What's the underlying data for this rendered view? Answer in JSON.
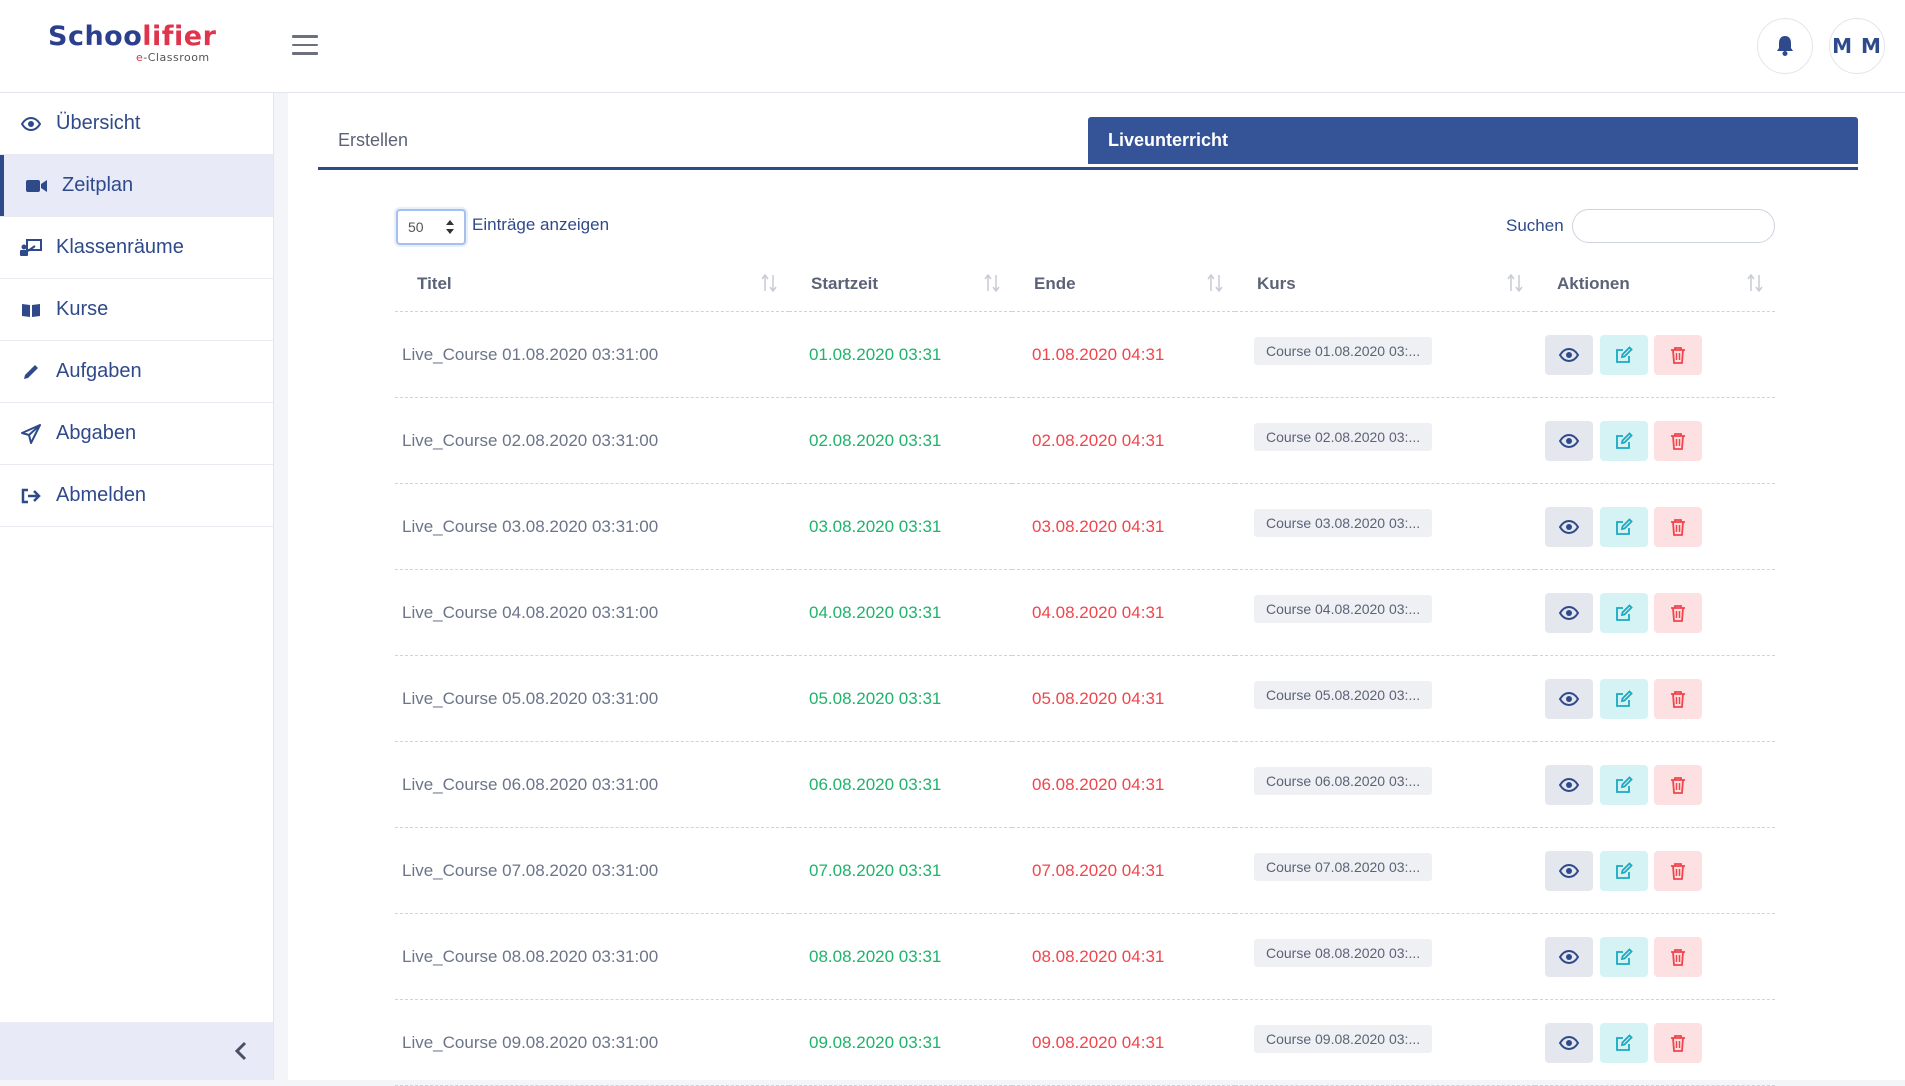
{
  "brand": {
    "logo_part1": "Schoo",
    "logo_part2": "lifier",
    "logo_sub_e": "e",
    "logo_sub_rest": "-Classroom"
  },
  "header": {
    "avatar_initials": "M M"
  },
  "sidebar": {
    "items": [
      {
        "label": "Übersicht",
        "icon": "eye-icon"
      },
      {
        "label": "Zeitplan",
        "icon": "video-camera-icon"
      },
      {
        "label": "Klassenräume",
        "icon": "classroom-icon"
      },
      {
        "label": "Kurse",
        "icon": "book-icon"
      },
      {
        "label": "Aufgaben",
        "icon": "pencil-icon"
      },
      {
        "label": "Abgaben",
        "icon": "paper-plane-icon"
      },
      {
        "label": "Abmelden",
        "icon": "sign-out-icon"
      }
    ],
    "active_index": 1
  },
  "tabs": [
    {
      "label": "Erstellen",
      "active": false
    },
    {
      "label": "Liveunterricht",
      "active": true
    }
  ],
  "table_controls": {
    "page_length_value": "50",
    "page_length_label": "Einträge anzeigen",
    "search_label": "Suchen",
    "search_value": ""
  },
  "table": {
    "columns": [
      "Titel",
      "Startzeit",
      "Ende",
      "Kurs",
      "Aktionen"
    ],
    "rows": [
      {
        "title": "Live_Course 01.08.2020 03:31:00",
        "start": "01.08.2020 03:31",
        "end": "01.08.2020 04:31",
        "course": "Course 01.08.2020 03:..."
      },
      {
        "title": "Live_Course 02.08.2020 03:31:00",
        "start": "02.08.2020 03:31",
        "end": "02.08.2020 04:31",
        "course": "Course 02.08.2020 03:..."
      },
      {
        "title": "Live_Course 03.08.2020 03:31:00",
        "start": "03.08.2020 03:31",
        "end": "03.08.2020 04:31",
        "course": "Course 03.08.2020 03:..."
      },
      {
        "title": "Live_Course 04.08.2020 03:31:00",
        "start": "04.08.2020 03:31",
        "end": "04.08.2020 04:31",
        "course": "Course 04.08.2020 03:..."
      },
      {
        "title": "Live_Course 05.08.2020 03:31:00",
        "start": "05.08.2020 03:31",
        "end": "05.08.2020 04:31",
        "course": "Course 05.08.2020 03:..."
      },
      {
        "title": "Live_Course 06.08.2020 03:31:00",
        "start": "06.08.2020 03:31",
        "end": "06.08.2020 04:31",
        "course": "Course 06.08.2020 03:..."
      },
      {
        "title": "Live_Course 07.08.2020 03:31:00",
        "start": "07.08.2020 03:31",
        "end": "07.08.2020 04:31",
        "course": "Course 07.08.2020 03:..."
      },
      {
        "title": "Live_Course 08.08.2020 03:31:00",
        "start": "08.08.2020 03:31",
        "end": "08.08.2020 04:31",
        "course": "Course 08.08.2020 03:..."
      },
      {
        "title": "Live_Course 09.08.2020 03:31:00",
        "start": "09.08.2020 03:31",
        "end": "09.08.2020 04:31",
        "course": "Course 09.08.2020 03:..."
      }
    ]
  },
  "colors": {
    "primary": "#345497",
    "start_time": "#1fb36b",
    "end_time": "#f0454c",
    "edit_icon": "#1ba9c2",
    "delete_icon": "#f0454c"
  }
}
